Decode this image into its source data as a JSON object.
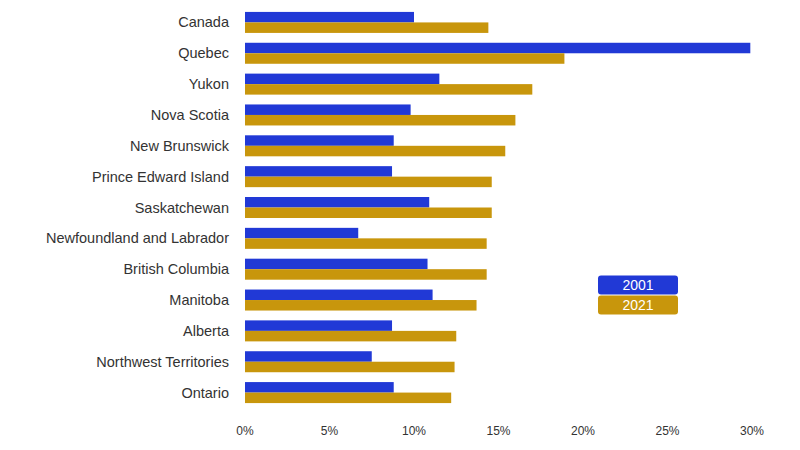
{
  "chart_data": {
    "type": "bar",
    "orientation": "horizontal",
    "categories": [
      "Canada",
      "Quebec",
      "Yukon",
      "Nova Scotia",
      "New Brunswick",
      "Prince Edward Island",
      "Saskatchewan",
      "Newfoundland and Labrador",
      "British Columbia",
      "Manitoba",
      "Alberta",
      "Northwest Territories",
      "Ontario"
    ],
    "series": [
      {
        "name": "2001",
        "color": "#2139d6",
        "values": [
          10.0,
          29.9,
          11.5,
          9.8,
          8.8,
          8.7,
          10.9,
          6.7,
          10.8,
          11.1,
          8.7,
          7.5,
          8.8
        ]
      },
      {
        "name": "2021",
        "color": "#c8960c",
        "values": [
          14.4,
          18.9,
          17.0,
          16.0,
          15.4,
          14.6,
          14.6,
          14.3,
          14.3,
          13.7,
          12.5,
          12.4,
          12.2
        ]
      }
    ],
    "xlim": [
      0,
      30
    ],
    "xticks": [
      {
        "value": 0,
        "label": "0%"
      },
      {
        "value": 5,
        "label": "5%"
      },
      {
        "value": 10,
        "label": "10%"
      },
      {
        "value": 15,
        "label": "15%"
      },
      {
        "value": 20,
        "label": "20%"
      },
      {
        "value": 25,
        "label": "25%"
      },
      {
        "value": 30,
        "label": "30%"
      }
    ],
    "grid": false,
    "legend": "right"
  }
}
